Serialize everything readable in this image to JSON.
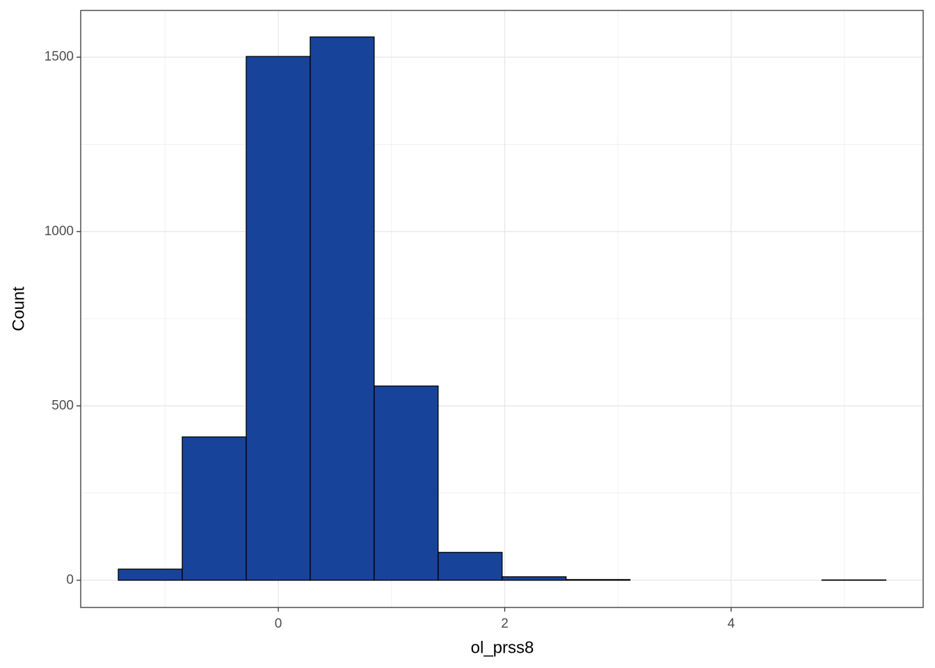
{
  "chart_data": {
    "type": "histogram",
    "x_label": "ol_prss8",
    "y_label": "Count",
    "bins": [
      -1.413,
      -0.848,
      -0.283,
      0.282,
      0.847,
      1.412,
      1.977,
      2.542,
      3.107,
      3.672,
      4.237,
      4.802,
      5.367
    ],
    "values": [
      32,
      411,
      1502,
      1558,
      557,
      80,
      10,
      2,
      0,
      0,
      0,
      1
    ],
    "color": "#18439a",
    "edge_color": "#000000",
    "xlim": [
      -1.745,
      5.696
    ],
    "ylim": [
      -78,
      1634
    ],
    "xticks": [
      0,
      2,
      4
    ],
    "yticks": [
      0,
      500,
      1000,
      1500
    ],
    "xminor": [
      -1,
      1,
      3,
      5
    ],
    "yminor": [
      250,
      750,
      1250
    ],
    "grid": true
  }
}
